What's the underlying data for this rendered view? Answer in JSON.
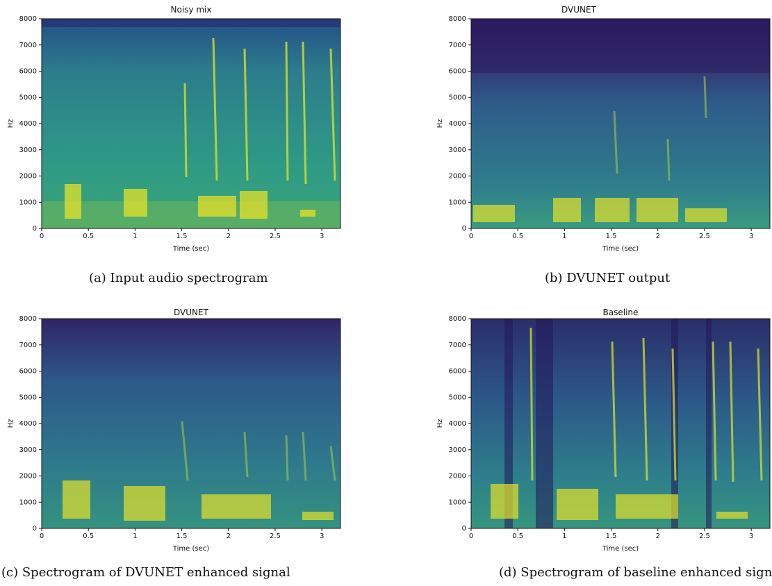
{
  "chart_data": [
    {
      "type": "heatmap",
      "title": "Noisy mix",
      "xlabel": "Time (sec)",
      "ylabel": "Hz",
      "xlim": [
        0,
        3.2
      ],
      "ylim": [
        0,
        8000
      ],
      "xticks": [
        "0",
        "0.5",
        "1",
        "1.5",
        "2",
        "2.5",
        "3"
      ],
      "yticks": [
        "0",
        "1000",
        "2000",
        "3000",
        "4000",
        "5000",
        "6000",
        "7000",
        "8000"
      ],
      "caption": "(a) Input audio spectrogram"
    },
    {
      "type": "heatmap",
      "title": "DVUNET",
      "xlabel": "Time (sec)",
      "ylabel": "Hz",
      "xlim": [
        0,
        3.2
      ],
      "ylim": [
        0,
        8000
      ],
      "xticks": [
        "0",
        "0.5",
        "1",
        "1.5",
        "2",
        "2.5",
        "3"
      ],
      "yticks": [
        "0",
        "1000",
        "2000",
        "3000",
        "4000",
        "5000",
        "6000",
        "7000",
        "8000"
      ],
      "caption": "(b) DVUNET output"
    },
    {
      "type": "heatmap",
      "title": "DVUNET",
      "xlabel": "Time (sec)",
      "ylabel": "Hz",
      "xlim": [
        0,
        3.2
      ],
      "ylim": [
        0,
        8000
      ],
      "xticks": [
        "0",
        "0.5",
        "1",
        "1.5",
        "2",
        "2.5",
        "3"
      ],
      "yticks": [
        "0",
        "1000",
        "2000",
        "3000",
        "4000",
        "5000",
        "6000",
        "7000",
        "8000"
      ],
      "caption": "(c) Spectrogram of DVUNET enhanced signal"
    },
    {
      "type": "heatmap",
      "title": "Baseline",
      "xlabel": "Time (sec)",
      "ylabel": "Hz",
      "xlim": [
        0,
        3.2
      ],
      "ylim": [
        0,
        8000
      ],
      "xticks": [
        "0",
        "0.5",
        "1",
        "1.5",
        "2",
        "2.5",
        "3"
      ],
      "yticks": [
        "0",
        "1000",
        "2000",
        "3000",
        "4000",
        "5000",
        "6000",
        "7000",
        "8000"
      ],
      "caption": "(d) Spectrogram of baseline enhanced signal"
    }
  ],
  "colors": {
    "low": "#2a1a5e",
    "mid": "#2b8a8a",
    "high": "#f2e51e"
  }
}
